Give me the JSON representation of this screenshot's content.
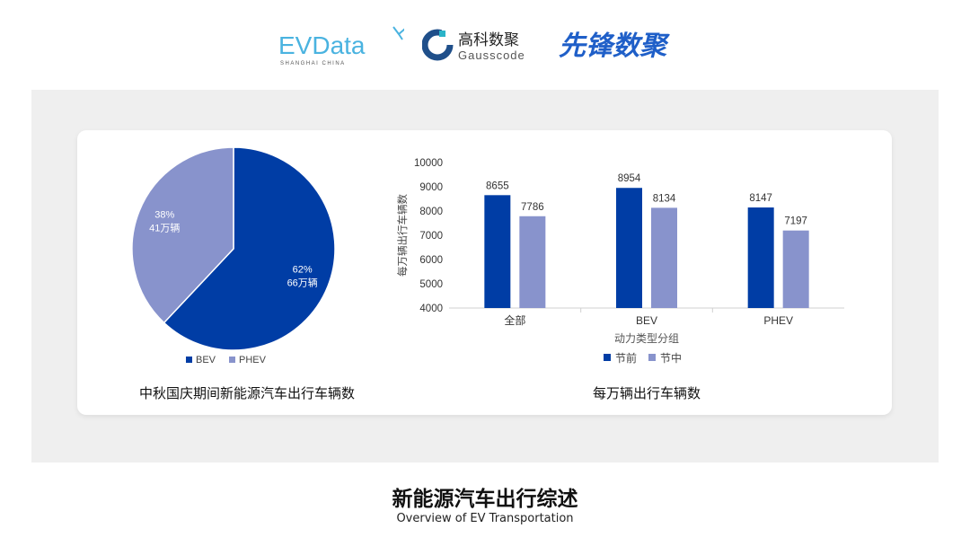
{
  "logos": [
    {
      "name": "EVData",
      "sub": "SHANGHAI CHINA"
    },
    {
      "name": "高科数聚",
      "sub": "Gausscode"
    },
    {
      "name": "先锋数聚"
    }
  ],
  "title": "新能源汽车出行综述",
  "subtitle": "Overview of EV Transportation",
  "colors": {
    "bev": "#003da5",
    "phev": "#8893cc",
    "before": "#003da5",
    "during": "#8893cc"
  },
  "chart_data": [
    {
      "type": "pie",
      "title": "中秋国庆期间新能源汽车出行车辆数",
      "slices": [
        {
          "name": "BEV",
          "percent_label": "62%",
          "value_label": "66万辆",
          "value": 66,
          "percent": 62
        },
        {
          "name": "PHEV",
          "percent_label": "38%",
          "value_label": "41万辆",
          "value": 41,
          "percent": 38
        }
      ],
      "legend": [
        "BEV",
        "PHEV"
      ],
      "legend_position": "bottom"
    },
    {
      "type": "bar",
      "title": "每万辆出行车辆数",
      "xlabel": "动力类型分组",
      "ylabel": "每万辆出行车辆数",
      "categories": [
        "全部",
        "BEV",
        "PHEV"
      ],
      "series": [
        {
          "name": "节前",
          "values": [
            8655,
            8954,
            8147
          ]
        },
        {
          "name": "节中",
          "values": [
            7786,
            8134,
            7197
          ]
        }
      ],
      "ylim": [
        4000,
        10000
      ],
      "yticks": [
        "4000",
        "5000",
        "6000",
        "7000",
        "8000",
        "9000",
        "10000"
      ],
      "grid": false,
      "legend_position": "bottom"
    }
  ]
}
